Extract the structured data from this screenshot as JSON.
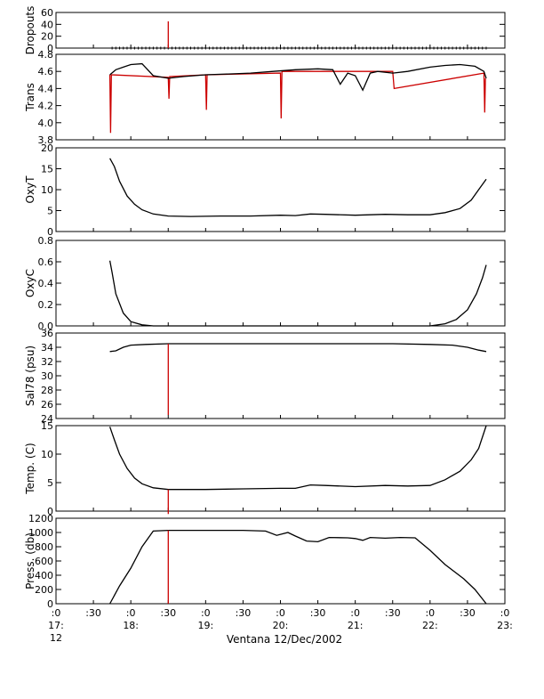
{
  "chart_data": [
    {
      "type": "line",
      "ylabel": "Dropouts",
      "ylim": [
        0,
        60
      ],
      "yticks": [
        "0",
        "20",
        "40",
        "60"
      ],
      "series": [
        {
          "color": "#000000",
          "style": "markers",
          "values": [
            [
              17.75,
              0
            ],
            [
              22.75,
              0
            ]
          ]
        },
        {
          "color": "#cc0000",
          "values": [
            [
              18.5,
              0
            ],
            [
              18.5,
              45
            ],
            [
              18.5,
              0
            ]
          ]
        }
      ]
    },
    {
      "type": "line",
      "ylabel": "Trans",
      "ylim": [
        3.8,
        4.8
      ],
      "yticks": [
        "3.8",
        "4.0",
        "4.2",
        "4.4",
        "4.6",
        "4.8"
      ],
      "series": [
        {
          "color": "#cc0000",
          "values": [
            [
              17.72,
              4.56
            ],
            [
              17.73,
              3.88
            ],
            [
              17.74,
              4.56
            ],
            [
              18.5,
              4.53
            ],
            [
              18.51,
              4.28
            ],
            [
              18.52,
              4.54
            ],
            [
              19.0,
              4.56
            ],
            [
              19.01,
              4.15
            ],
            [
              19.02,
              4.56
            ],
            [
              20.0,
              4.58
            ],
            [
              20.01,
              4.05
            ],
            [
              20.02,
              4.6
            ],
            [
              21.5,
              4.6
            ],
            [
              21.51,
              4.5
            ],
            [
              21.52,
              4.4
            ],
            [
              22.72,
              4.58
            ],
            [
              22.73,
              4.12
            ],
            [
              22.74,
              4.52
            ]
          ]
        },
        {
          "color": "#000000",
          "values": [
            [
              17.72,
              4.56
            ],
            [
              17.8,
              4.62
            ],
            [
              17.9,
              4.65
            ],
            [
              18.0,
              4.68
            ],
            [
              18.15,
              4.69
            ],
            [
              18.3,
              4.55
            ],
            [
              18.5,
              4.52
            ],
            [
              18.7,
              4.54
            ],
            [
              19.0,
              4.56
            ],
            [
              19.3,
              4.57
            ],
            [
              19.6,
              4.58
            ],
            [
              19.9,
              4.6
            ],
            [
              20.2,
              4.62
            ],
            [
              20.5,
              4.63
            ],
            [
              20.7,
              4.62
            ],
            [
              20.8,
              4.45
            ],
            [
              20.9,
              4.58
            ],
            [
              21.0,
              4.55
            ],
            [
              21.1,
              4.38
            ],
            [
              21.2,
              4.58
            ],
            [
              21.3,
              4.6
            ],
            [
              21.5,
              4.58
            ],
            [
              21.7,
              4.6
            ],
            [
              22.0,
              4.65
            ],
            [
              22.2,
              4.67
            ],
            [
              22.4,
              4.68
            ],
            [
              22.6,
              4.66
            ],
            [
              22.72,
              4.6
            ],
            [
              22.75,
              4.52
            ]
          ]
        }
      ]
    },
    {
      "type": "line",
      "ylabel": "OxyT",
      "ylim": [
        0,
        20
      ],
      "yticks": [
        "0",
        "5",
        "10",
        "15",
        "20"
      ],
      "series": [
        {
          "color": "#000000",
          "values": [
            [
              17.72,
              17.5
            ],
            [
              17.78,
              15.5
            ],
            [
              17.85,
              12.0
            ],
            [
              17.95,
              8.5
            ],
            [
              18.05,
              6.5
            ],
            [
              18.15,
              5.2
            ],
            [
              18.3,
              4.2
            ],
            [
              18.5,
              3.7
            ],
            [
              18.8,
              3.6
            ],
            [
              19.2,
              3.7
            ],
            [
              19.6,
              3.7
            ],
            [
              20.0,
              3.9
            ],
            [
              20.2,
              3.8
            ],
            [
              20.4,
              4.2
            ],
            [
              20.6,
              4.1
            ],
            [
              21.0,
              3.9
            ],
            [
              21.4,
              4.1
            ],
            [
              21.7,
              4.0
            ],
            [
              22.0,
              4.0
            ],
            [
              22.2,
              4.5
            ],
            [
              22.4,
              5.5
            ],
            [
              22.55,
              7.5
            ],
            [
              22.65,
              10.0
            ],
            [
              22.75,
              12.5
            ]
          ]
        }
      ]
    },
    {
      "type": "line",
      "ylabel": "OxyC",
      "ylim": [
        0,
        0.8
      ],
      "yticks": [
        "0.0",
        "0.2",
        "0.4",
        "0.6",
        "0.8"
      ],
      "series": [
        {
          "color": "#000000",
          "values": [
            [
              17.72,
              0.61
            ],
            [
              17.75,
              0.5
            ],
            [
              17.8,
              0.3
            ],
            [
              17.9,
              0.12
            ],
            [
              18.0,
              0.04
            ],
            [
              18.15,
              0.01
            ],
            [
              18.3,
              0.0
            ],
            [
              19.0,
              0.0
            ],
            [
              20.0,
              0.0
            ],
            [
              21.0,
              0.0
            ],
            [
              22.0,
              0.0
            ],
            [
              22.2,
              0.02
            ],
            [
              22.35,
              0.06
            ],
            [
              22.5,
              0.15
            ],
            [
              22.62,
              0.3
            ],
            [
              22.7,
              0.45
            ],
            [
              22.75,
              0.57
            ]
          ]
        }
      ]
    },
    {
      "type": "line",
      "ylabel": "Sal78 (psu)",
      "ylim": [
        24,
        36
      ],
      "yticks": [
        "24",
        "26",
        "28",
        "30",
        "32",
        "34",
        "36"
      ],
      "series": [
        {
          "color": "#000000",
          "values": [
            [
              17.72,
              33.4
            ],
            [
              17.8,
              33.5
            ],
            [
              17.9,
              34.0
            ],
            [
              18.0,
              34.3
            ],
            [
              18.2,
              34.4
            ],
            [
              18.5,
              34.5
            ],
            [
              19.5,
              34.5
            ],
            [
              20.5,
              34.5
            ],
            [
              21.5,
              34.5
            ],
            [
              22.0,
              34.4
            ],
            [
              22.3,
              34.3
            ],
            [
              22.5,
              34.0
            ],
            [
              22.65,
              33.6
            ],
            [
              22.75,
              33.4
            ]
          ]
        },
        {
          "color": "#cc0000",
          "values": [
            [
              18.5,
              34.5
            ],
            [
              18.5,
              24.5
            ],
            [
              18.5,
              34.5
            ]
          ]
        }
      ]
    },
    {
      "type": "line",
      "ylabel": "Temp. (C)",
      "ylim": [
        0,
        15
      ],
      "yticks": [
        "0",
        "5",
        "10",
        "15"
      ],
      "series": [
        {
          "color": "#000000",
          "values": [
            [
              17.72,
              14.8
            ],
            [
              17.78,
              12.5
            ],
            [
              17.85,
              10.0
            ],
            [
              17.95,
              7.5
            ],
            [
              18.05,
              5.8
            ],
            [
              18.15,
              4.8
            ],
            [
              18.3,
              4.1
            ],
            [
              18.5,
              3.8
            ],
            [
              19.0,
              3.8
            ],
            [
              19.5,
              3.9
            ],
            [
              20.0,
              4.0
            ],
            [
              20.2,
              4.0
            ],
            [
              20.4,
              4.6
            ],
            [
              20.6,
              4.5
            ],
            [
              21.0,
              4.3
            ],
            [
              21.4,
              4.5
            ],
            [
              21.7,
              4.4
            ],
            [
              22.0,
              4.5
            ],
            [
              22.2,
              5.5
            ],
            [
              22.4,
              7.0
            ],
            [
              22.55,
              9.0
            ],
            [
              22.65,
              11.0
            ],
            [
              22.75,
              15.0
            ]
          ]
        },
        {
          "color": "#cc0000",
          "values": [
            [
              18.5,
              3.8
            ],
            [
              18.5,
              -0.5
            ],
            [
              18.5,
              3.8
            ]
          ]
        }
      ]
    },
    {
      "type": "line",
      "ylabel": "Press. (db)",
      "ylim": [
        0,
        1200
      ],
      "yticks": [
        "0",
        "200",
        "400",
        "600",
        "800",
        "1000",
        "1200"
      ],
      "series": [
        {
          "color": "#000000",
          "values": [
            [
              17.72,
              0
            ],
            [
              17.85,
              250
            ],
            [
              18.0,
              500
            ],
            [
              18.15,
              800
            ],
            [
              18.3,
              1020
            ],
            [
              18.5,
              1030
            ],
            [
              19.0,
              1030
            ],
            [
              19.5,
              1030
            ],
            [
              19.8,
              1020
            ],
            [
              19.95,
              960
            ],
            [
              20.1,
              1000
            ],
            [
              20.2,
              950
            ],
            [
              20.35,
              880
            ],
            [
              20.5,
              870
            ],
            [
              20.65,
              930
            ],
            [
              20.9,
              925
            ],
            [
              21.0,
              915
            ],
            [
              21.1,
              890
            ],
            [
              21.2,
              930
            ],
            [
              21.4,
              920
            ],
            [
              21.6,
              930
            ],
            [
              21.8,
              925
            ],
            [
              22.0,
              750
            ],
            [
              22.2,
              550
            ],
            [
              22.45,
              350
            ],
            [
              22.6,
              200
            ],
            [
              22.75,
              0
            ]
          ]
        },
        {
          "color": "#cc0000",
          "values": [
            [
              18.5,
              1030
            ],
            [
              18.5,
              0
            ],
            [
              18.5,
              1030
            ]
          ]
        }
      ]
    }
  ],
  "x_axis": {
    "min": 17.0,
    "max": 23.0,
    "xlabel": "Ventana 12/Dec/2002",
    "ticks": [
      {
        "x": 17.0,
        "l1": ":0",
        "l2": "17:",
        "l3": "12"
      },
      {
        "x": 17.5,
        "l1": ":30",
        "l2": "",
        "l3": ""
      },
      {
        "x": 18.0,
        "l1": ":0",
        "l2": "18:",
        "l3": ""
      },
      {
        "x": 18.5,
        "l1": ":30",
        "l2": "",
        "l3": ""
      },
      {
        "x": 19.0,
        "l1": ":0",
        "l2": "19:",
        "l3": ""
      },
      {
        "x": 19.5,
        "l1": ":30",
        "l2": "",
        "l3": ""
      },
      {
        "x": 20.0,
        "l1": ":0",
        "l2": "20:",
        "l3": ""
      },
      {
        "x": 20.5,
        "l1": ":30",
        "l2": "",
        "l3": ""
      },
      {
        "x": 21.0,
        "l1": ":0",
        "l2": "21:",
        "l3": ""
      },
      {
        "x": 21.5,
        "l1": ":30",
        "l2": "",
        "l3": ""
      },
      {
        "x": 22.0,
        "l1": ":0",
        "l2": "22:",
        "l3": ""
      },
      {
        "x": 22.5,
        "l1": ":30",
        "l2": "",
        "l3": ""
      },
      {
        "x": 23.0,
        "l1": ":0",
        "l2": "23:",
        "l3": ""
      }
    ]
  }
}
